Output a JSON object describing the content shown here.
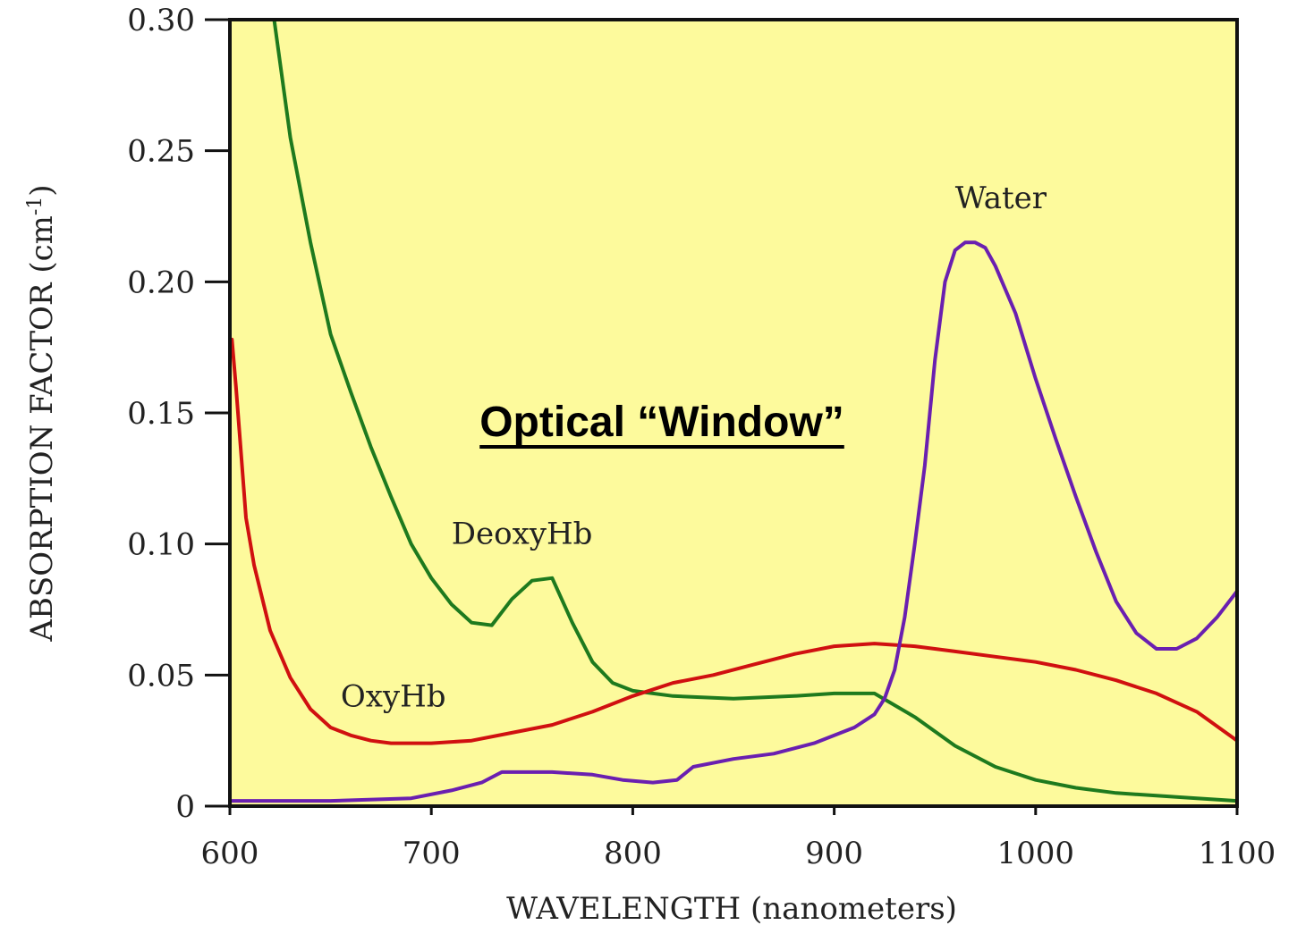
{
  "chart_data": {
    "type": "line",
    "xlabel": "WAVELENGTH (nanometers)",
    "ylabel": "ABSORPTION FACTOR (cm",
    "ylabel_sup": "-1",
    "ylabel_suffix": ")",
    "xlim": [
      600,
      1100
    ],
    "ylim": [
      0,
      0.3
    ],
    "x_ticks": [
      600,
      700,
      800,
      900,
      1000,
      1100
    ],
    "x_tick_labels": [
      "600",
      "700",
      "800",
      "900",
      "1000",
      "1100"
    ],
    "y_ticks": [
      0,
      0.05,
      0.1,
      0.15,
      0.2,
      0.25,
      0.3
    ],
    "y_tick_labels": [
      "0",
      "0.05",
      "0.10",
      "0.15",
      "0.20",
      "0.25",
      "0.30"
    ],
    "grid": false,
    "legend": "none",
    "background_color": "#fdfa9c",
    "annotation": "Optical “Window”",
    "series": [
      {
        "name": "DeoxyHb",
        "color": "#1e7a1e",
        "label_pos": [
          710,
          0.1
        ],
        "x": [
          622,
          630,
          640,
          650,
          660,
          670,
          680,
          690,
          700,
          710,
          720,
          730,
          740,
          750,
          760,
          770,
          780,
          790,
          800,
          820,
          850,
          880,
          900,
          920,
          940,
          960,
          980,
          1000,
          1020,
          1040,
          1060,
          1080,
          1100
        ],
        "y": [
          0.3,
          0.255,
          0.215,
          0.18,
          0.158,
          0.137,
          0.118,
          0.1,
          0.087,
          0.077,
          0.07,
          0.069,
          0.079,
          0.086,
          0.087,
          0.07,
          0.055,
          0.047,
          0.044,
          0.042,
          0.041,
          0.042,
          0.043,
          0.043,
          0.034,
          0.023,
          0.015,
          0.01,
          0.007,
          0.005,
          0.004,
          0.003,
          0.002
        ]
      },
      {
        "name": "OxyHb",
        "color": "#d01010",
        "label_pos": [
          655,
          0.038
        ],
        "x": [
          601,
          603,
          605,
          608,
          612,
          620,
          630,
          640,
          650,
          660,
          670,
          680,
          690,
          700,
          720,
          740,
          760,
          780,
          800,
          820,
          840,
          860,
          880,
          900,
          920,
          940,
          960,
          980,
          1000,
          1020,
          1040,
          1060,
          1080,
          1100
        ],
        "y": [
          0.178,
          0.16,
          0.14,
          0.11,
          0.092,
          0.067,
          0.049,
          0.037,
          0.03,
          0.027,
          0.025,
          0.024,
          0.024,
          0.024,
          0.025,
          0.028,
          0.031,
          0.036,
          0.042,
          0.047,
          0.05,
          0.054,
          0.058,
          0.061,
          0.062,
          0.061,
          0.059,
          0.057,
          0.055,
          0.052,
          0.048,
          0.043,
          0.036,
          0.025
        ]
      },
      {
        "name": "Water",
        "color": "#6a1fb0",
        "label_pos": [
          960,
          0.228
        ],
        "x": [
          600,
          650,
          690,
          710,
          725,
          735,
          742,
          760,
          780,
          795,
          810,
          822,
          830,
          850,
          870,
          890,
          910,
          920,
          925,
          930,
          935,
          940,
          945,
          950,
          955,
          960,
          965,
          970,
          975,
          980,
          990,
          1000,
          1010,
          1020,
          1030,
          1040,
          1050,
          1060,
          1070,
          1080,
          1090,
          1100
        ],
        "y": [
          0.002,
          0.002,
          0.003,
          0.006,
          0.009,
          0.013,
          0.013,
          0.013,
          0.012,
          0.01,
          0.009,
          0.01,
          0.015,
          0.018,
          0.02,
          0.024,
          0.03,
          0.035,
          0.041,
          0.052,
          0.072,
          0.1,
          0.13,
          0.17,
          0.2,
          0.212,
          0.215,
          0.215,
          0.213,
          0.206,
          0.188,
          0.163,
          0.14,
          0.118,
          0.097,
          0.078,
          0.066,
          0.06,
          0.06,
          0.064,
          0.072,
          0.082
        ]
      }
    ]
  }
}
